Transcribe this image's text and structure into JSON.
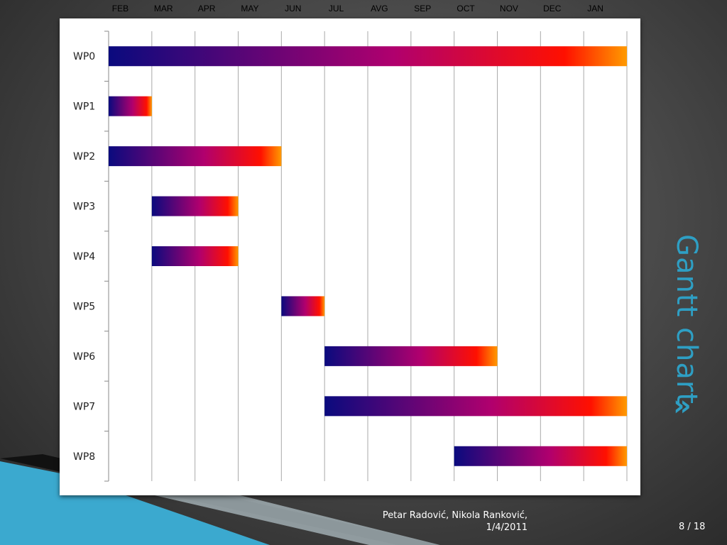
{
  "slide": {
    "title": "Gantt chart",
    "chevron_icon": "double-chevron-right-icon",
    "authors": "Petar Radović, Nikola Ranković,",
    "date": "1/4/2011",
    "page": "8 / 18",
    "accent_color": "#2e9fc4"
  },
  "chart_data": {
    "type": "gantt",
    "months": [
      "FEB",
      "MAR",
      "APR",
      "MAY",
      "JUN",
      "JUL",
      "AVG",
      "SEP",
      "OCT",
      "NOV",
      "DEC",
      "JAN"
    ],
    "tasks": [
      {
        "name": "WP0",
        "start": 0,
        "end": 12
      },
      {
        "name": "WP1",
        "start": 0,
        "end": 1
      },
      {
        "name": "WP2",
        "start": 0,
        "end": 4
      },
      {
        "name": "WP3",
        "start": 1,
        "end": 3
      },
      {
        "name": "WP4",
        "start": 1,
        "end": 3
      },
      {
        "name": "WP5",
        "start": 4,
        "end": 5
      },
      {
        "name": "WP6",
        "start": 5,
        "end": 9
      },
      {
        "name": "WP7",
        "start": 5,
        "end": 12
      },
      {
        "name": "WP8",
        "start": 8,
        "end": 12
      }
    ],
    "gradient_colors": [
      "#0a0a7e",
      "#b0006e",
      "#ff1000",
      "#ff9a00"
    ],
    "grid": true
  }
}
